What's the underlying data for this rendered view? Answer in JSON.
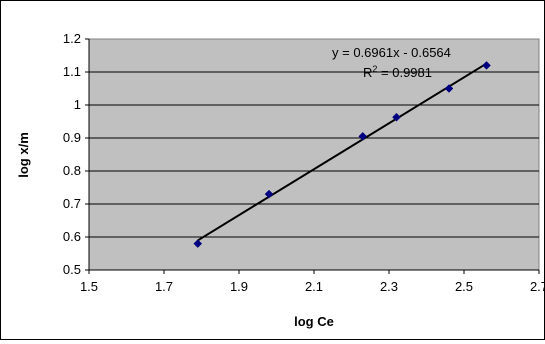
{
  "chart_data": {
    "type": "scatter",
    "title": "",
    "xlabel": "log Ce",
    "ylabel": "log x/m",
    "xlim": [
      1.5,
      2.7
    ],
    "ylim": [
      0.5,
      1.2
    ],
    "x_ticks": [
      "1.5",
      "1.7",
      "1.9",
      "2.1",
      "2.3",
      "2.5",
      "2.7"
    ],
    "y_ticks": [
      "0.5",
      "0.6",
      "0.7",
      "0.8",
      "0.9",
      "1",
      "1.1",
      "1.2"
    ],
    "grid": "horizontal",
    "legend": "none",
    "series": [
      {
        "x": [
          1.79,
          1.98,
          2.23,
          2.32,
          2.46,
          2.56
        ],
        "y": [
          0.58,
          0.73,
          0.905,
          0.963,
          1.05,
          1.12
        ]
      }
    ],
    "trendline": {
      "type": "linear",
      "slope": 0.6961,
      "intercept": -0.6564,
      "x_range": [
        1.79,
        2.56
      ],
      "equation": "y = 0.6961x - 0.6564",
      "r2_prefix": "R",
      "r2_sup": "2",
      "r2_suffix": " = 0.9981"
    },
    "colors": {
      "plot_background": "#c0c0c0",
      "marker": "#000080",
      "trendline": "#000000",
      "gridline": "#000000"
    }
  }
}
